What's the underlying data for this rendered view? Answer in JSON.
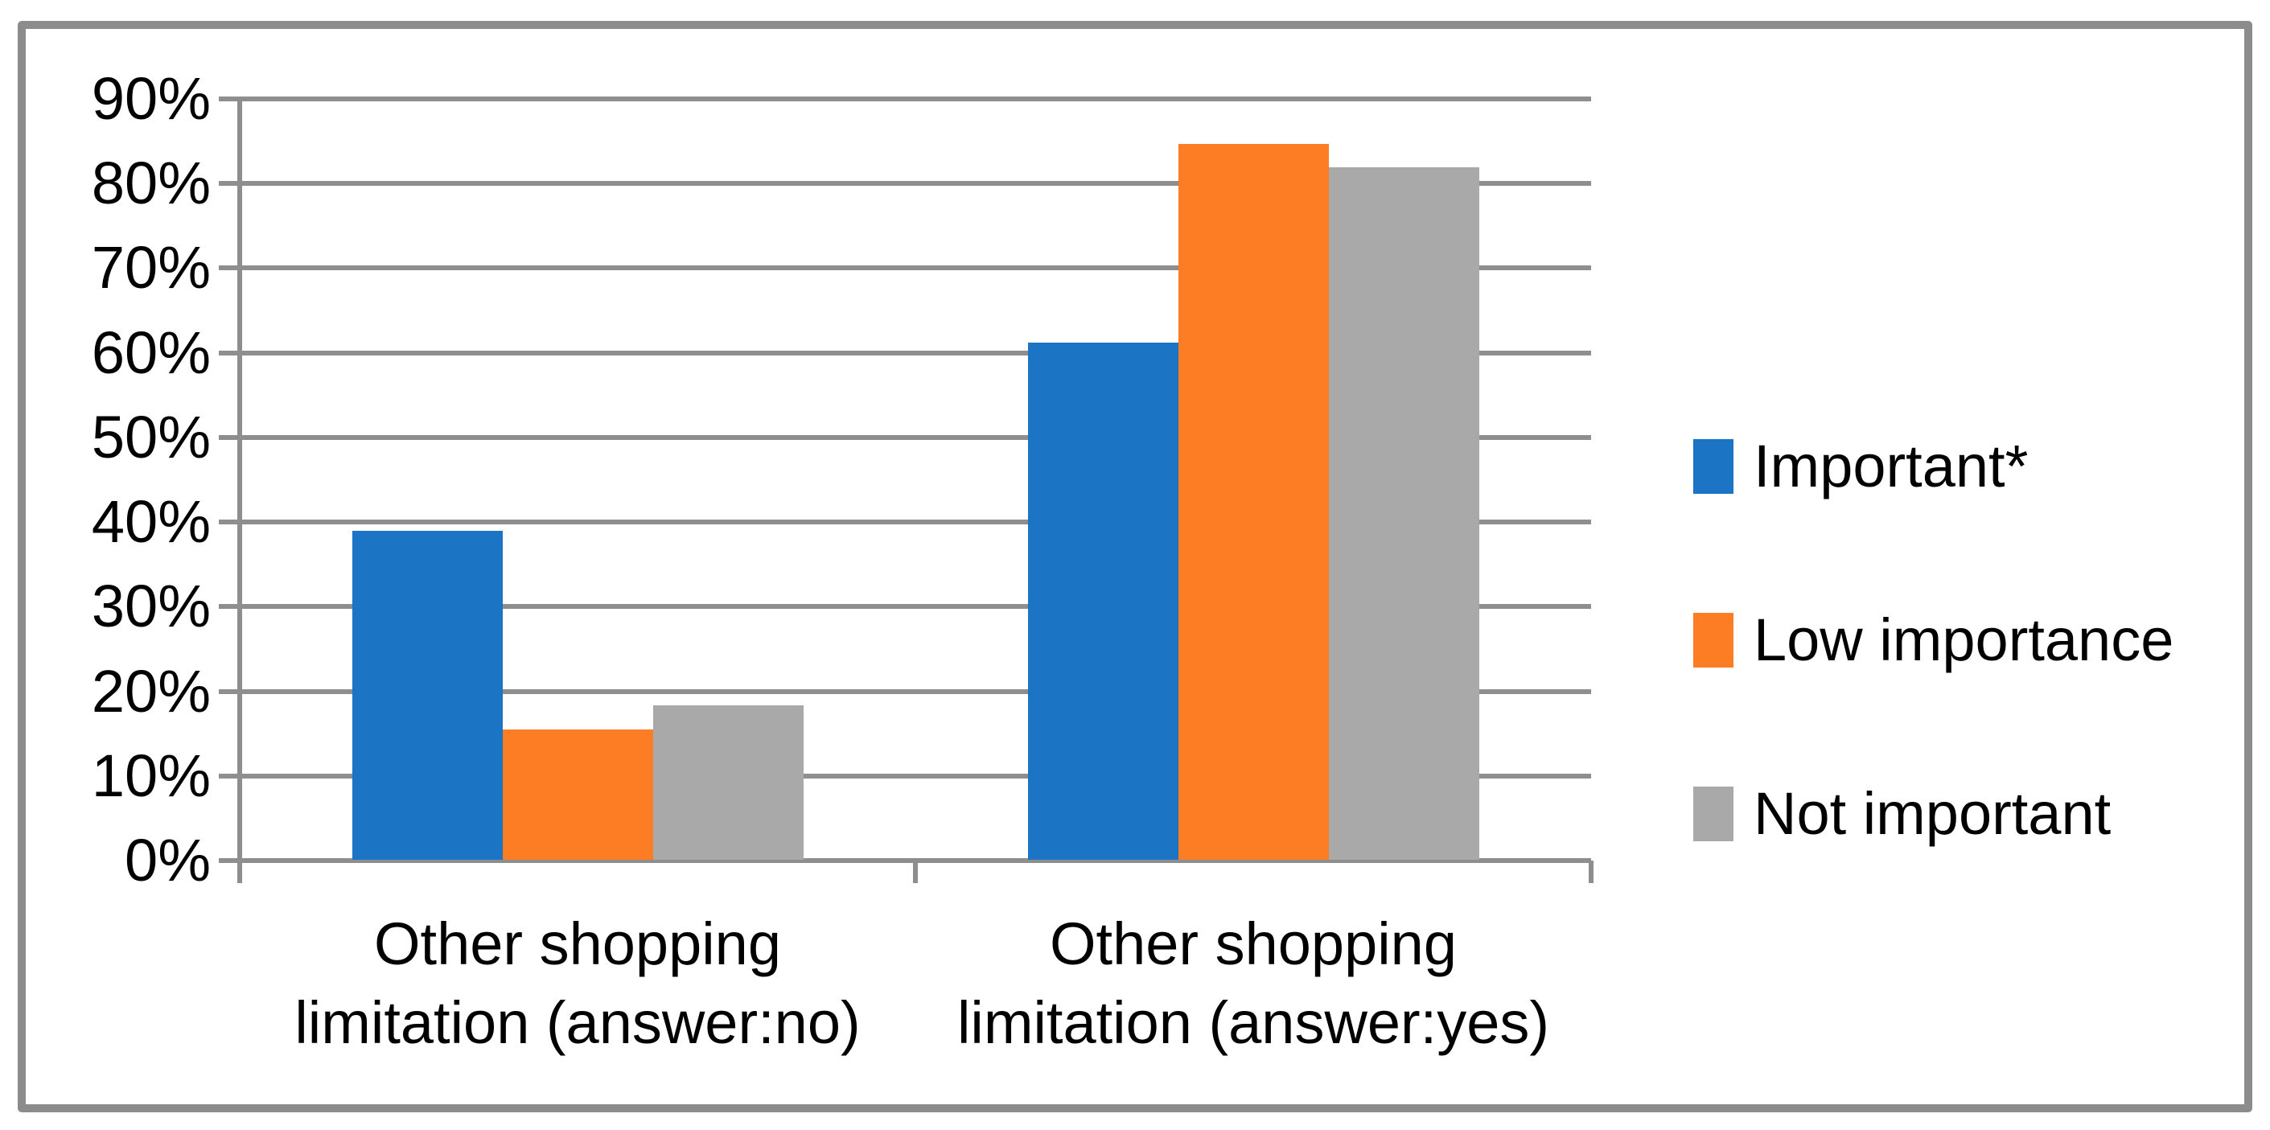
{
  "chart_data": {
    "type": "bar",
    "title": "",
    "categories": [
      "Other shopping limitation (answer:no)",
      "Other shopping limitation (answer:yes)"
    ],
    "category_lines": [
      [
        "Other shopping",
        "limitation (answer:no)"
      ],
      [
        "Other shopping",
        "limitation (answer:yes)"
      ]
    ],
    "series": [
      {
        "name": "Important*",
        "color": "#1B74C4",
        "values": [
          38.9,
          61.1
        ]
      },
      {
        "name": "Low importance",
        "color": "#FC7D24",
        "values": [
          15.4,
          84.6
        ]
      },
      {
        "name": "Not important",
        "color": "#A9A9A9",
        "values": [
          18.2,
          81.8
        ]
      }
    ],
    "xlabel": "",
    "ylabel": "",
    "ylim": [
      0,
      90
    ],
    "y_tick_step": 10,
    "y_tick_labels": [
      "0%",
      "10%",
      "20%",
      "30%",
      "40%",
      "50%",
      "60%",
      "70%",
      "80%",
      "90%"
    ],
    "grid": true,
    "legend_position": "right",
    "colors": {
      "gridline": "#8E8E8E",
      "axis": "#8E8E8E",
      "border": "#8C8C8C",
      "text": "#000000",
      "background": "#FFFFFF"
    }
  }
}
